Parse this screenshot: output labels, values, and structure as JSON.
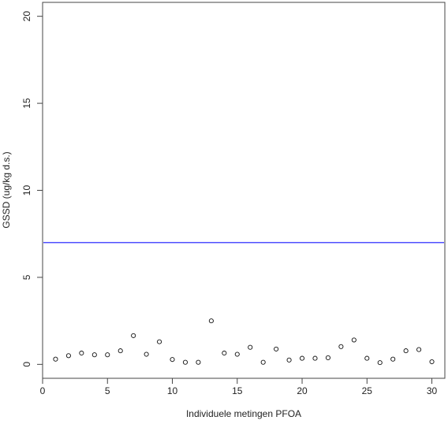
{
  "chart_data": {
    "type": "scatter",
    "title": "",
    "xlabel": "Individuele metingen PFOA",
    "ylabel": "GSSD (ug/kg d.s.)",
    "xlim": [
      0,
      31
    ],
    "ylim": [
      -0.8,
      20.8
    ],
    "xticks": [
      0,
      5,
      10,
      15,
      20,
      25,
      30
    ],
    "yticks": [
      0,
      5,
      10,
      15,
      20
    ],
    "grid": false,
    "reference_line": {
      "y": 7.0,
      "color": "#4f4fff"
    },
    "marker": "open-circle",
    "series": [
      {
        "x": [
          1,
          2,
          3,
          4,
          5,
          6,
          7,
          8,
          9,
          10,
          11,
          12,
          13,
          14,
          15,
          16,
          17,
          18,
          19,
          20,
          21,
          22,
          23,
          24,
          25,
          26,
          27,
          28,
          29,
          30
        ],
        "y": [
          0.3,
          0.5,
          0.65,
          0.55,
          0.55,
          0.78,
          1.65,
          0.58,
          1.3,
          0.28,
          0.12,
          0.12,
          2.5,
          0.65,
          0.58,
          0.98,
          0.12,
          0.88,
          0.25,
          0.35,
          0.35,
          0.38,
          1.02,
          1.4,
          0.35,
          0.1,
          0.3,
          0.78,
          0.85,
          0.15
        ]
      }
    ]
  }
}
